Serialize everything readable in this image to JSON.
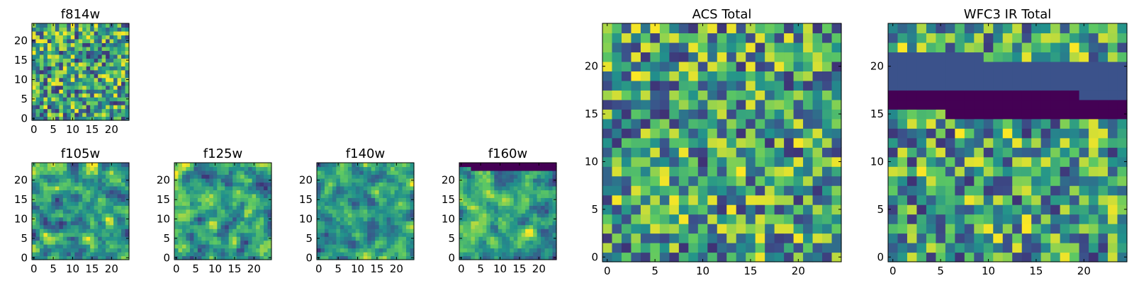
{
  "figure": {
    "background": "#ffffff",
    "colormap": "viridis",
    "colors": [
      "#440154",
      "#3b528b",
      "#21918c",
      "#5ec962",
      "#fde725"
    ]
  },
  "chart_data": [
    {
      "type": "heatmap",
      "title": "f814w",
      "xlim": [
        0,
        25
      ],
      "ylim": [
        0,
        25
      ],
      "xticks": [
        0,
        5,
        10,
        15,
        20
      ],
      "yticks": [
        0,
        5,
        10,
        15,
        20
      ],
      "grid_size": 25,
      "seed": 11,
      "smoothness": 0
    },
    {
      "type": "heatmap",
      "title": "f105w",
      "xlim": [
        0,
        25
      ],
      "ylim": [
        0,
        25
      ],
      "xticks": [
        0,
        5,
        10,
        15,
        20
      ],
      "yticks": [
        0,
        5,
        10,
        15,
        20
      ],
      "grid_size": 25,
      "seed": 23,
      "smoothness": 1
    },
    {
      "type": "heatmap",
      "title": "f125w",
      "xlim": [
        0,
        25
      ],
      "ylim": [
        0,
        25
      ],
      "xticks": [
        0,
        5,
        10,
        15,
        20
      ],
      "yticks": [
        0,
        5,
        10,
        15,
        20
      ],
      "grid_size": 25,
      "seed": 37,
      "smoothness": 1
    },
    {
      "type": "heatmap",
      "title": "f140w",
      "xlim": [
        0,
        25
      ],
      "ylim": [
        0,
        25
      ],
      "xticks": [
        0,
        5,
        10,
        15,
        20
      ],
      "yticks": [
        0,
        5,
        10,
        15,
        20
      ],
      "grid_size": 25,
      "seed": 41,
      "smoothness": 1
    },
    {
      "type": "heatmap",
      "title": "f160w",
      "xlim": [
        0,
        25
      ],
      "ylim": [
        0,
        25
      ],
      "xticks": [
        0,
        5,
        10,
        15,
        20
      ],
      "yticks": [
        0,
        5,
        10,
        15,
        20
      ],
      "grid_size": 25,
      "seed": 53,
      "smoothness": 1
    },
    {
      "type": "heatmap",
      "title": "ACS Total",
      "xlim": [
        0,
        25
      ],
      "ylim": [
        0,
        25
      ],
      "xticks": [
        0,
        5,
        10,
        15,
        20
      ],
      "yticks": [
        0,
        5,
        10,
        15,
        20
      ],
      "grid_size": 25,
      "seed": 67,
      "smoothness": 0
    },
    {
      "type": "heatmap",
      "title": "WFC3 IR Total",
      "xlim": [
        0,
        25
      ],
      "ylim": [
        0,
        25
      ],
      "xticks": [
        0,
        5,
        10,
        15,
        20
      ],
      "yticks": [
        0,
        5,
        10,
        15,
        20
      ],
      "grid_size": 25,
      "seed": 79,
      "smoothness": 0
    }
  ]
}
